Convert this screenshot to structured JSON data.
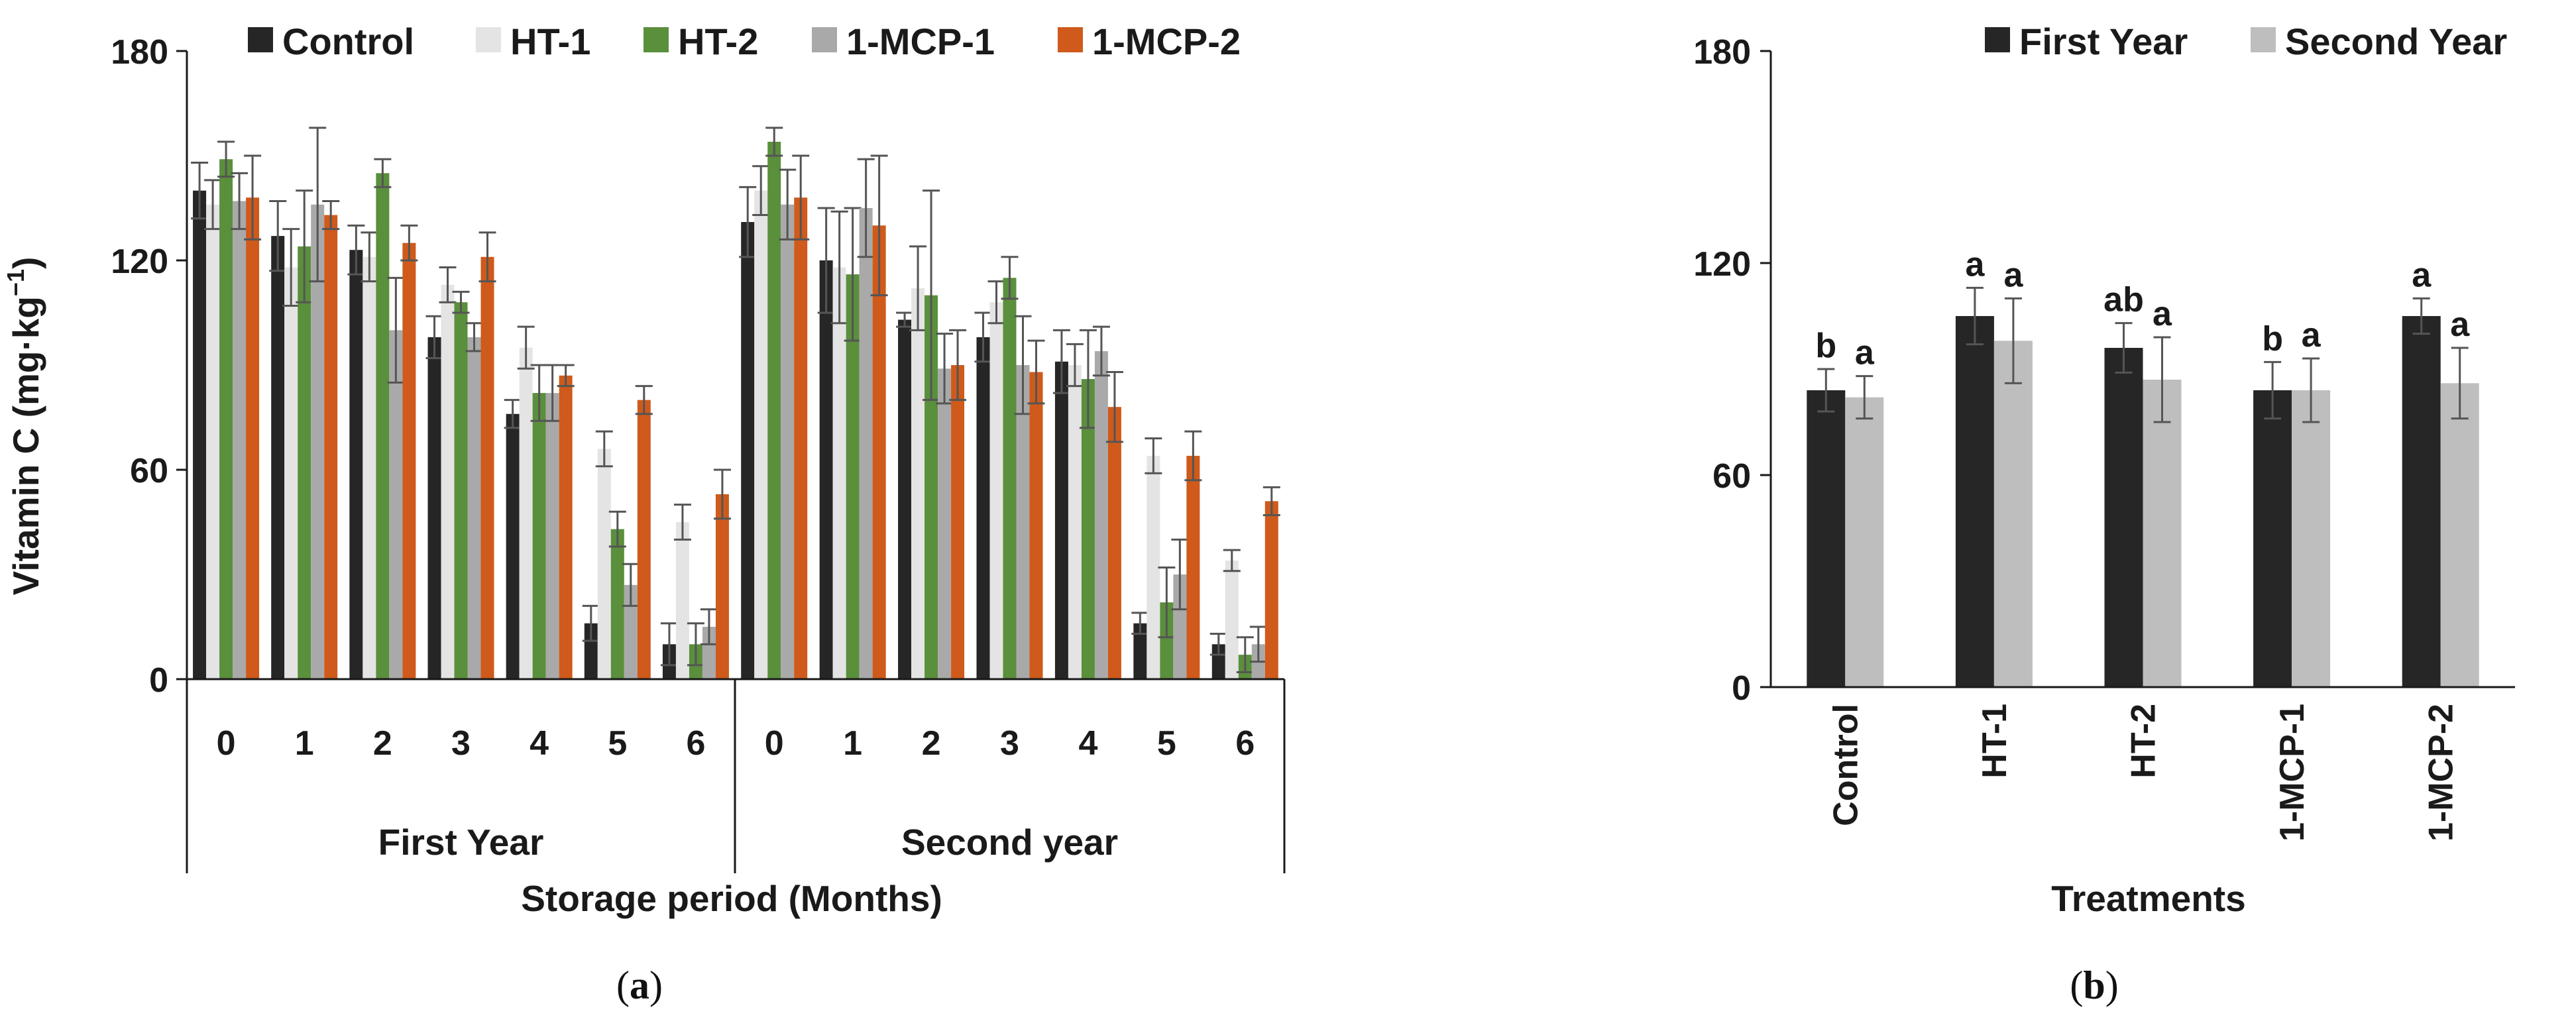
{
  "chart_data": [
    {
      "type": "bar",
      "panel": "a",
      "panel_label": [
        "(",
        "a",
        ")"
      ],
      "ylabel_parts": [
        "Vitamin C (mg·kg",
        "−1",
        ")"
      ],
      "xlabel": "Storage period (Months)",
      "ylim": [
        0,
        180
      ],
      "yticks": [
        "0",
        "60",
        "120",
        "180"
      ],
      "legend": [
        "Control",
        "HT-1",
        "HT-2",
        "1-MCP-1",
        "1-MCP-2"
      ],
      "groups": [
        {
          "name": "First Year",
          "categories": [
            "0",
            "1",
            "2",
            "3",
            "4",
            "5",
            "6"
          ],
          "series": [
            {
              "name": "Control",
              "values": [
                140,
                127,
                123,
                98,
                76,
                16,
                10
              ],
              "errors": [
                8,
                10,
                7,
                6,
                4,
                5,
                6
              ]
            },
            {
              "name": "HT-1",
              "values": [
                136,
                118,
                121,
                113,
                95,
                66,
                45
              ],
              "errors": [
                7,
                11,
                7,
                5,
                6,
                5,
                5
              ]
            },
            {
              "name": "HT-2",
              "values": [
                149,
                124,
                145,
                108,
                82,
                43,
                10
              ],
              "errors": [
                5,
                16,
                4,
                3,
                8,
                5,
                6
              ]
            },
            {
              "name": "1-MCP-1",
              "values": [
                137,
                136,
                100,
                98,
                82,
                27,
                15
              ],
              "errors": [
                8,
                22,
                15,
                4,
                8,
                6,
                5
              ]
            },
            {
              "name": "1-MCP-2",
              "values": [
                138,
                133,
                125,
                121,
                87,
                80,
                53
              ],
              "errors": [
                12,
                4,
                5,
                7,
                3,
                4,
                7
              ]
            }
          ]
        },
        {
          "name": "Second year",
          "categories": [
            "0",
            "1",
            "2",
            "3",
            "4",
            "5",
            "6"
          ],
          "series": [
            {
              "name": "Control",
              "values": [
                131,
                120,
                103,
                98,
                91,
                16,
                10
              ],
              "errors": [
                10,
                15,
                2,
                7,
                9,
                3,
                3
              ]
            },
            {
              "name": "HT-1",
              "values": [
                140,
                118,
                112,
                108,
                90,
                64,
                34
              ],
              "errors": [
                7,
                16,
                12,
                6,
                6,
                5,
                3
              ]
            },
            {
              "name": "HT-2",
              "values": [
                154,
                116,
                110,
                115,
                86,
                22,
                7
              ],
              "errors": [
                4,
                19,
                30,
                6,
                14,
                10,
                5
              ]
            },
            {
              "name": "1-MCP-1",
              "values": [
                136,
                135,
                89,
                90,
                94,
                30,
                10
              ],
              "errors": [
                10,
                14,
                10,
                14,
                7,
                10,
                5
              ]
            },
            {
              "name": "1-MCP-2",
              "values": [
                138,
                130,
                90,
                88,
                78,
                64,
                51
              ],
              "errors": [
                12,
                20,
                10,
                9,
                10,
                7,
                4
              ]
            }
          ]
        }
      ]
    },
    {
      "type": "bar",
      "panel": "b",
      "panel_label": [
        "(",
        "b",
        ")"
      ],
      "ylabel": "",
      "xlabel": "Treatments",
      "ylim": [
        0,
        180
      ],
      "yticks": [
        "0",
        "60",
        "120",
        "180"
      ],
      "legend": [
        "First Year",
        "Second Year"
      ],
      "categories": [
        "Control",
        "HT-1",
        "HT-2",
        "1-MCP-1",
        "1-MCP-2"
      ],
      "series": [
        {
          "name": "First Year",
          "values": [
            84,
            105,
            96,
            84,
            105
          ],
          "errors": [
            6,
            8,
            7,
            8,
            5
          ],
          "labels": [
            "b",
            "a",
            "ab",
            "b",
            "a"
          ]
        },
        {
          "name": "Second Year",
          "values": [
            82,
            98,
            87,
            84,
            86
          ],
          "errors": [
            6,
            12,
            12,
            9,
            10
          ],
          "labels": [
            "a",
            "a",
            "a",
            "a",
            "a"
          ]
        }
      ]
    }
  ],
  "colors": {
    "Control": "#262626",
    "HT-1": "#e4e4e4",
    "HT-2": "#5a8f3c",
    "1-MCP-1": "#a9a9a9",
    "1-MCP-2": "#cf5a1b",
    "First Year": "#262626",
    "Second Year": "#bebebe"
  }
}
